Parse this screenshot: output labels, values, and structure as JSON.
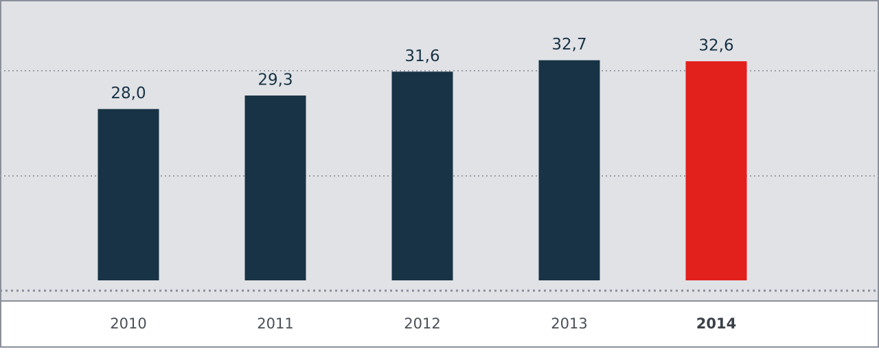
{
  "chart_data": {
    "type": "bar",
    "categories": [
      "2010",
      "2011",
      "2012",
      "2013",
      "2014"
    ],
    "values": [
      28.0,
      29.3,
      31.6,
      32.7,
      32.6
    ],
    "value_labels": [
      "28,0",
      "29,3",
      "31,6",
      "32,7",
      "32,6"
    ],
    "colors": [
      "#173345",
      "#173345",
      "#173345",
      "#173345",
      "#e2201c"
    ],
    "ylim": [
      11.5,
      38.5
    ]
  }
}
